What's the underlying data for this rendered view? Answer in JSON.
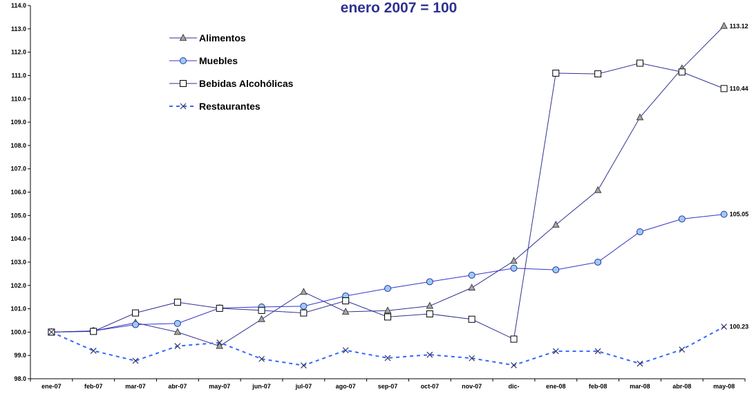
{
  "chart_data": {
    "type": "line",
    "title": "enero 2007 = 100",
    "xlabel": "",
    "ylabel": "",
    "ylim": [
      98.0,
      114.0
    ],
    "yticks": [
      "98.0",
      "99.0",
      "100.0",
      "101.0",
      "102.0",
      "103.0",
      "104.0",
      "105.0",
      "106.0",
      "107.0",
      "108.0",
      "109.0",
      "110.0",
      "111.0",
      "112.0",
      "113.0",
      "114.0"
    ],
    "categories": [
      "ene-07",
      "feb-07",
      "mar-07",
      "abr-07",
      "may-07",
      "jun-07",
      "jul-07",
      "ago-07",
      "sep-07",
      "oct-07",
      "nov-07",
      "dic-",
      "ene-08",
      "feb-08",
      "mar-08",
      "abr-08",
      "may-08"
    ],
    "legend_position": "top-left",
    "grid": false,
    "series": [
      {
        "name": "Alimentos",
        "color": "#2E3192",
        "marker": "triangle",
        "dashed": false,
        "values": [
          100.0,
          100.05,
          100.4,
          100.0,
          99.4,
          100.55,
          101.72,
          100.87,
          100.92,
          101.12,
          101.9,
          103.05,
          104.6,
          106.08,
          109.2,
          111.3,
          113.12
        ],
        "end_label": "113.12"
      },
      {
        "name": "Muebles",
        "color": "#3333CC",
        "marker": "circle",
        "dashed": false,
        "values": [
          100.0,
          100.05,
          100.32,
          100.37,
          101.03,
          101.08,
          101.11,
          101.55,
          101.87,
          102.16,
          102.44,
          102.74,
          102.67,
          103.0,
          104.3,
          104.85,
          105.05
        ],
        "end_label": "105.05"
      },
      {
        "name": "Bebidas Alcohólicas",
        "color": "#2E3192",
        "marker": "square",
        "dashed": false,
        "values": [
          100.0,
          100.03,
          100.82,
          101.28,
          101.02,
          100.93,
          100.82,
          101.34,
          100.65,
          100.78,
          100.55,
          99.7,
          111.1,
          111.07,
          111.53,
          111.15,
          110.44
        ],
        "end_label": "110.44"
      },
      {
        "name": "Restaurantes",
        "color": "#3366FF",
        "marker": "x",
        "dashed": true,
        "values": [
          100.0,
          99.2,
          98.77,
          99.4,
          99.55,
          98.85,
          98.57,
          99.22,
          98.89,
          99.03,
          98.88,
          98.58,
          99.18,
          99.18,
          98.65,
          99.25,
          100.23
        ],
        "end_label": "100.23"
      }
    ]
  }
}
